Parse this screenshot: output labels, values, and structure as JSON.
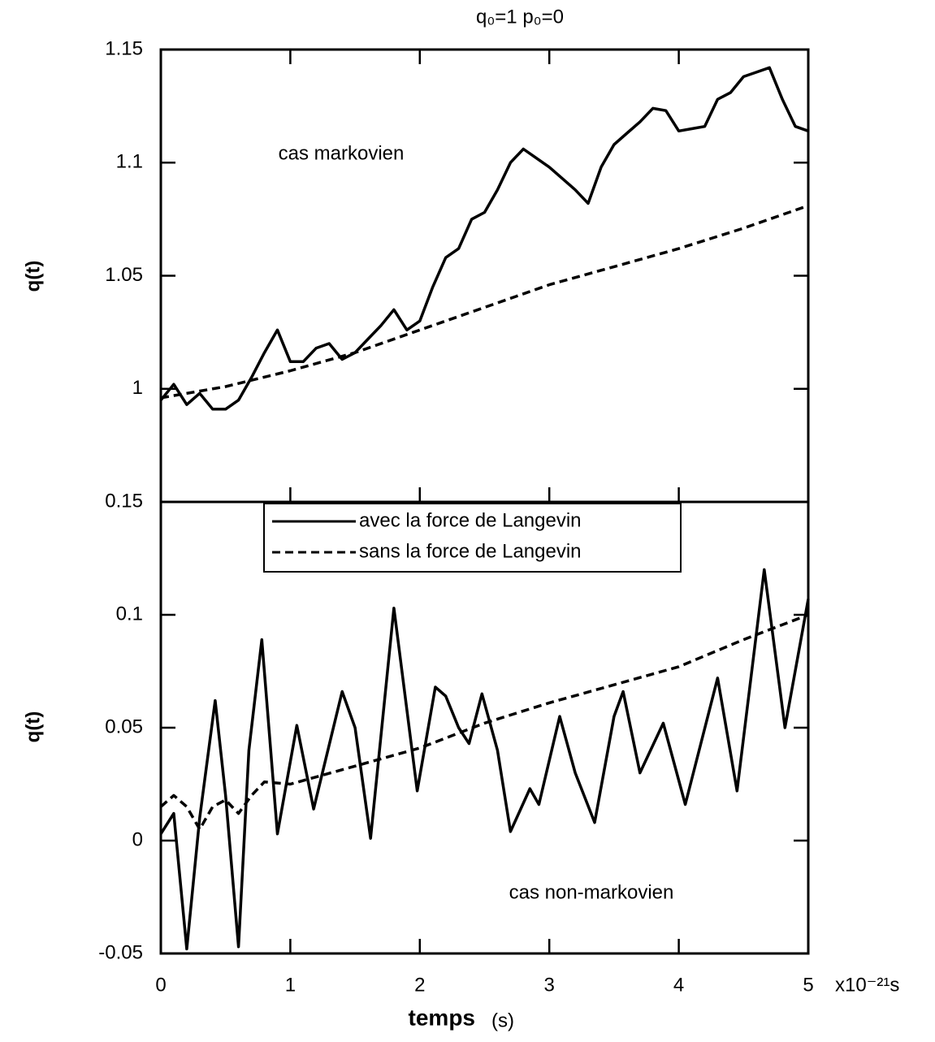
{
  "chart_data": [
    {
      "type": "line",
      "title": "q₀=1  p₀=0",
      "ylabel": "q(t)",
      "annotation": "cas markovien",
      "xlim": [
        0,
        5
      ],
      "xticks": [
        0,
        1,
        2,
        3,
        4,
        5
      ],
      "ylim": [
        0.95,
        1.15
      ],
      "yticks": [
        1,
        1.05,
        1.1,
        1.15
      ],
      "series": [
        {
          "color": "#000000",
          "dashed": false,
          "x": [
            0,
            0.1,
            0.2,
            0.3,
            0.4,
            0.5,
            0.6,
            0.7,
            0.8,
            0.9,
            1,
            1.1,
            1.2,
            1.3,
            1.4,
            1.5,
            1.6,
            1.7,
            1.8,
            1.9,
            2,
            2.1,
            2.2,
            2.3,
            2.4,
            2.5,
            2.6,
            2.7,
            2.8,
            2.9,
            3,
            3.1,
            3.2,
            3.3,
            3.4,
            3.5,
            3.6,
            3.7,
            3.8,
            3.9,
            4,
            4.1,
            4.2,
            4.3,
            4.4,
            4.5,
            4.6,
            4.7,
            4.8,
            4.9,
            5
          ],
          "values": [
            0.995,
            1.002,
            0.993,
            0.998,
            0.991,
            0.991,
            0.995,
            1.005,
            1.016,
            1.026,
            1.012,
            1.012,
            1.018,
            1.02,
            1.013,
            1.016,
            1.022,
            1.028,
            1.035,
            1.026,
            1.03,
            1.045,
            1.058,
            1.062,
            1.075,
            1.078,
            1.088,
            1.1,
            1.106,
            1.102,
            1.098,
            1.093,
            1.088,
            1.082,
            1.098,
            1.108,
            1.113,
            1.118,
            1.124,
            1.123,
            1.114,
            1.115,
            1.116,
            1.128,
            1.131,
            1.138,
            1.14,
            1.142,
            1.128,
            1.116,
            1.114
          ]
        },
        {
          "color": "#000000",
          "dashed": true,
          "x": [
            0,
            0.5,
            1,
            1.5,
            2,
            2.5,
            3,
            3.5,
            4,
            4.5,
            5
          ],
          "values": [
            0.996,
            1.001,
            1.008,
            1.016,
            1.026,
            1.036,
            1.046,
            1.054,
            1.062,
            1.071,
            1.081
          ]
        }
      ]
    },
    {
      "type": "line",
      "ylabel": "q(t)",
      "xlabel": "temps",
      "xlabel_unit": "(s)",
      "x_scale_note": "x10⁻²¹s",
      "annotation": "cas non-markovien",
      "xlim": [
        0,
        5
      ],
      "xticks": [
        0,
        1,
        2,
        3,
        4,
        5
      ],
      "ylim": [
        -0.05,
        0.15
      ],
      "yticks": [
        -0.05,
        0,
        0.05,
        0.1,
        0.15
      ],
      "series": [
        {
          "name": "avec la force de Langevin",
          "color": "#000000",
          "dashed": false,
          "x": [
            0,
            0.1,
            0.2,
            0.3,
            0.42,
            0.5,
            0.6,
            0.68,
            0.78,
            0.9,
            1.05,
            1.18,
            1.4,
            1.5,
            1.62,
            1.8,
            1.98,
            2.12,
            2.2,
            2.3,
            2.38,
            2.48,
            2.6,
            2.7,
            2.85,
            2.92,
            3.08,
            3.2,
            3.35,
            3.5,
            3.57,
            3.7,
            3.88,
            4.05,
            4.3,
            4.45,
            4.66,
            4.82,
            5
          ],
          "values": [
            0.003,
            0.012,
            -0.048,
            0.01,
            0.062,
            0.02,
            -0.047,
            0.04,
            0.089,
            0.003,
            0.051,
            0.014,
            0.066,
            0.05,
            0.001,
            0.103,
            0.022,
            0.068,
            0.064,
            0.05,
            0.043,
            0.065,
            0.04,
            0.004,
            0.023,
            0.016,
            0.055,
            0.03,
            0.008,
            0.055,
            0.066,
            0.03,
            0.052,
            0.016,
            0.072,
            0.022,
            0.12,
            0.05,
            0.107
          ]
        },
        {
          "name": "sans la force de Langevin",
          "color": "#000000",
          "dashed": true,
          "x": [
            0,
            0.1,
            0.2,
            0.3,
            0.4,
            0.5,
            0.6,
            0.7,
            0.8,
            1,
            1.5,
            2,
            2.5,
            3,
            3.5,
            4,
            4.5,
            5
          ],
          "values": [
            0.015,
            0.02,
            0.015,
            0.005,
            0.015,
            0.018,
            0.012,
            0.02,
            0.026,
            0.025,
            0.033,
            0.041,
            0.052,
            0.061,
            0.069,
            0.077,
            0.089,
            0.1
          ]
        }
      ]
    }
  ]
}
